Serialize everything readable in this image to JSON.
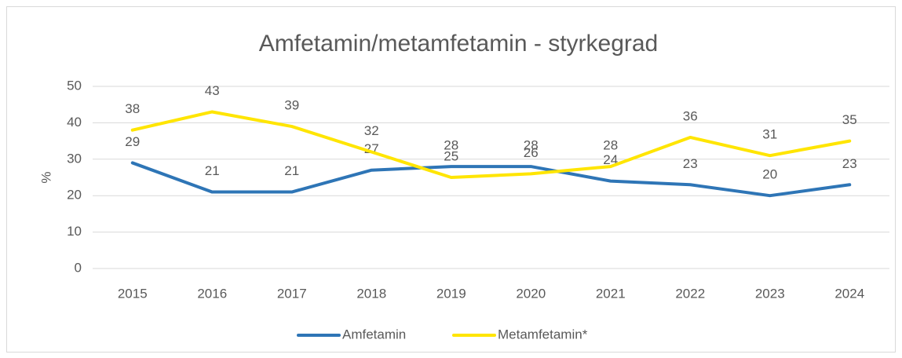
{
  "chart_data": {
    "type": "line",
    "title": "Amfetamin/metamfetamin - styrkegrad",
    "y_label": "%",
    "categories": [
      "2015",
      "2016",
      "2017",
      "2018",
      "2019",
      "2020",
      "2021",
      "2022",
      "2023",
      "2024"
    ],
    "series": [
      {
        "name": "Amfetamin",
        "color": "#2e75b6",
        "values": [
          29,
          21,
          21,
          27,
          28,
          28,
          24,
          23,
          20,
          23
        ]
      },
      {
        "name": "Metamfetamin*",
        "color": "#ffe500",
        "values": [
          38,
          43,
          39,
          32,
          25,
          26,
          28,
          36,
          31,
          35
        ]
      }
    ],
    "ylim": [
      0,
      50
    ],
    "yticks": [
      0,
      10,
      20,
      30,
      40,
      50
    ],
    "grid": true,
    "legend": "bottom"
  }
}
